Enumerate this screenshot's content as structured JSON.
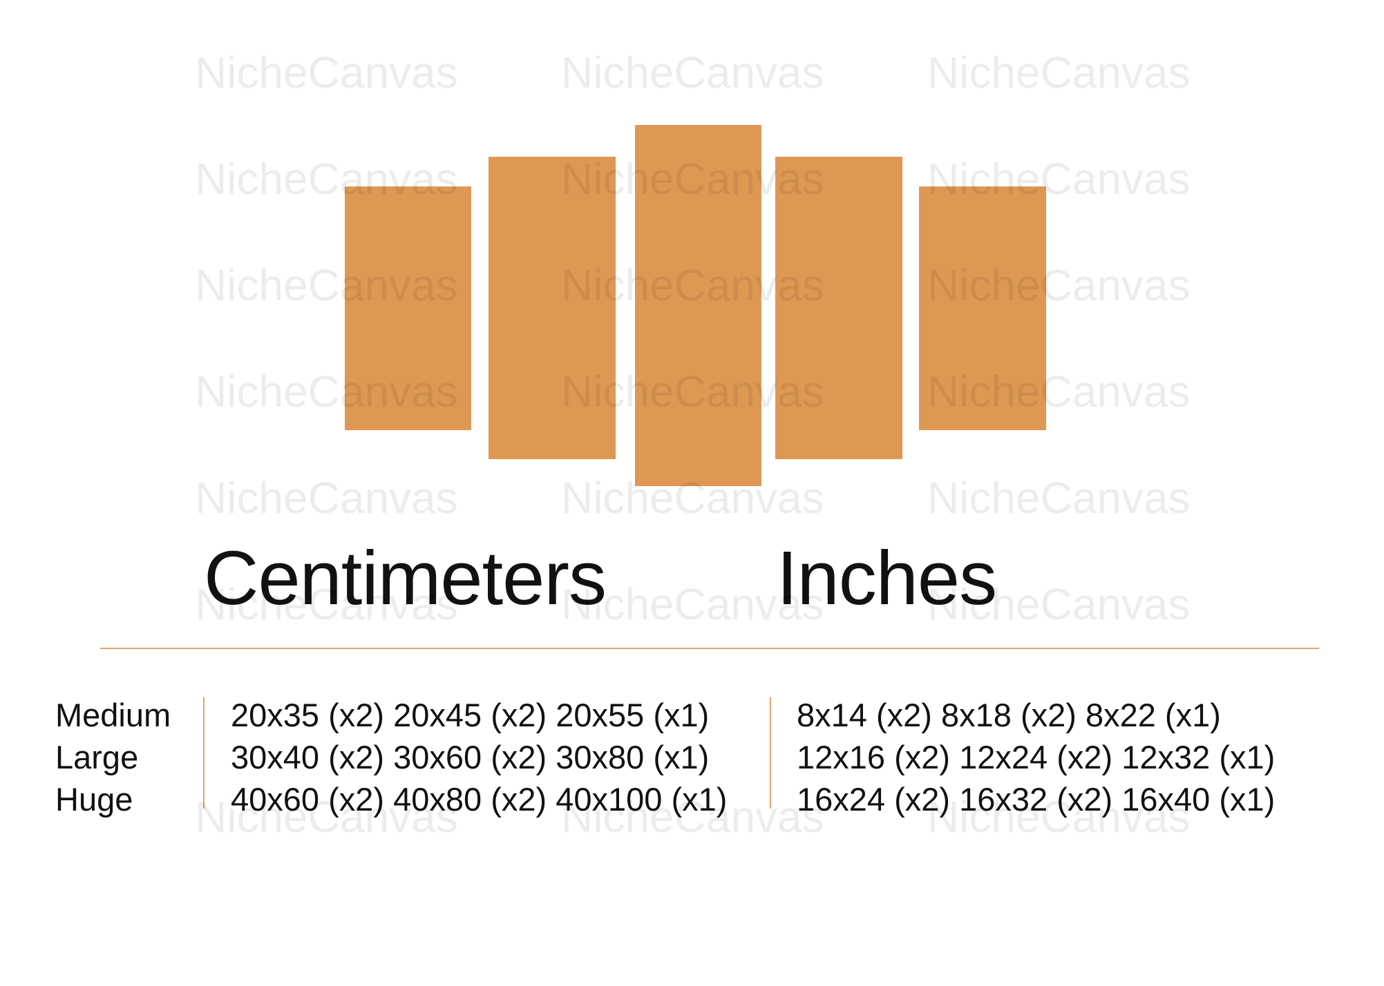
{
  "watermark": "NicheCanvas",
  "accent_color": "#de9854",
  "panels": 5,
  "headings": {
    "cm": "Centimeters",
    "in": "Inches"
  },
  "sizes": [
    {
      "label": "Medium",
      "cm": "20x35 (x2) 20x45 (x2) 20x55 (x1)",
      "in": "8x14 (x2) 8x18 (x2) 8x22 (x1)"
    },
    {
      "label": "Large",
      "cm": "30x40 (x2) 30x60 (x2) 30x80 (x1)",
      "in": "12x16 (x2) 12x24 (x2) 12x32 (x1)"
    },
    {
      "label": "Huge",
      "cm": "40x60 (x2) 40x80 (x2) 40x100 (x1)",
      "in": "16x24 (x2) 16x32 (x2) 16x40 (x1)"
    }
  ]
}
